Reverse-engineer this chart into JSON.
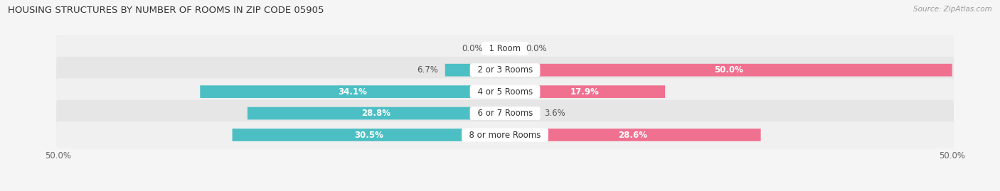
{
  "title": "HOUSING STRUCTURES BY NUMBER OF ROOMS IN ZIP CODE 05905",
  "source": "Source: ZipAtlas.com",
  "categories": [
    "1 Room",
    "2 or 3 Rooms",
    "4 or 5 Rooms",
    "6 or 7 Rooms",
    "8 or more Rooms"
  ],
  "owner_values": [
    0.0,
    6.7,
    34.1,
    28.8,
    30.5
  ],
  "renter_values": [
    0.0,
    50.0,
    17.9,
    3.6,
    28.6
  ],
  "owner_color": "#4bbfc4",
  "renter_color": "#f07090",
  "owner_color_light": "#90d8dc",
  "renter_color_light": "#f8b8cc",
  "row_bg_odd": "#f0f0f0",
  "row_bg_even": "#e6e6e6",
  "axis_limit": 50.0,
  "label_fontsize": 8.5,
  "title_fontsize": 9.5,
  "bar_height": 0.58,
  "category_label_fontsize": 8.5,
  "legend_fontsize": 9.0,
  "bg_color": "#f5f5f5"
}
